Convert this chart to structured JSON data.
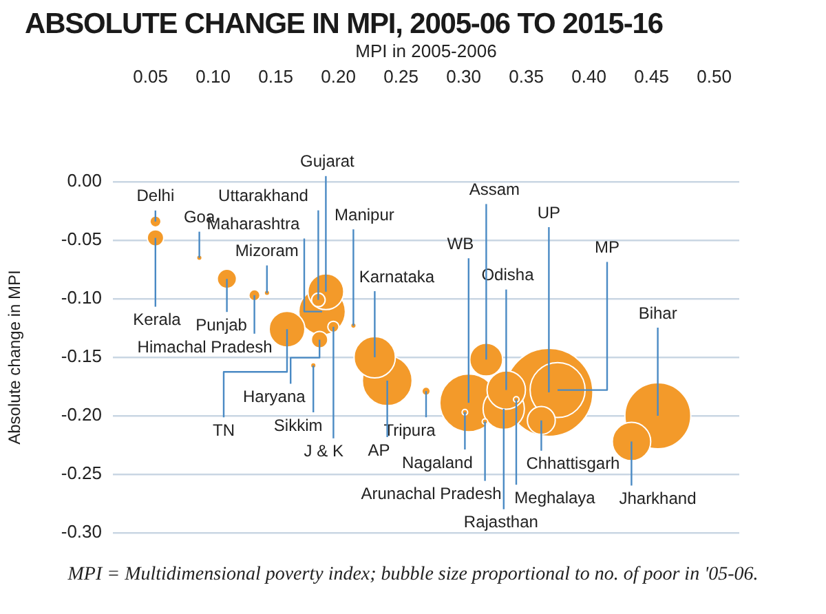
{
  "chart_data": {
    "type": "bubble",
    "title": "ABSOLUTE CHANGE IN MPI, 2005-06 TO 2015-16",
    "xlabel": "MPI in 2005-2006",
    "ylabel": "Absolute change in MPI",
    "x": [
      0.368,
      0.455,
      0.304,
      0.375,
      0.239,
      0.229,
      0.332,
      0.187,
      0.334,
      0.434,
      0.159,
      0.19,
      0.318,
      0.362,
      0.111,
      0.054,
      0.185,
      0.184,
      0.054,
      0.133,
      0.196,
      0.27,
      0.18,
      0.089,
      0.143,
      0.212,
      0.301,
      0.317,
      0.342
    ],
    "values": [
      -0.18,
      -0.2,
      -0.189,
      -0.178,
      -0.17,
      -0.15,
      -0.194,
      -0.111,
      -0.178,
      -0.222,
      -0.126,
      -0.094,
      -0.152,
      -0.204,
      -0.083,
      -0.048,
      -0.135,
      -0.101,
      -0.034,
      -0.097,
      -0.124,
      -0.179,
      -0.157,
      -0.065,
      -0.095,
      -0.123,
      -0.197,
      -0.205,
      -0.186
    ],
    "sizes": [
      1,
      0.56,
      0.43,
      0.39,
      0.32,
      0.22,
      0.22,
      0.28,
      0.19,
      0.19,
      0.165,
      0.165,
      0.14,
      0.1,
      0.048,
      0.035,
      0.035,
      0.024,
      0.016,
      0.016,
      0.016,
      0.009,
      0.004,
      0.004,
      0.004,
      0.004,
      0.004,
      0.004,
      0.004
    ],
    "color": "#f39a2a",
    "xlim": [
      0.02,
      0.52
    ],
    "xticks": [
      0.05,
      {
        "value": 0.1,
        "label": "0.10"
      },
      0.15,
      {
        "value": 0.2,
        "label": "0.20"
      },
      0.25,
      {
        "value": 0.3,
        "label": "0.30"
      },
      0.35,
      {
        "value": 0.4,
        "label": "0.40"
      },
      0.45,
      {
        "value": 0.5,
        "label": "0.50"
      }
    ],
    "ylim": [
      -0.3,
      0
    ],
    "yticks": [
      {
        "value": 0,
        "label": "0.00"
      },
      -0.05,
      {
        "value": -0.1,
        "label": "-0.10"
      },
      -0.15,
      {
        "value": -0.2,
        "label": "-0.20"
      },
      -0.25,
      {
        "value": -0.3,
        "label": "-0.30"
      }
    ],
    "grid": "y",
    "annotations": [
      {
        "text": "UP",
        "x": 0.368,
        "y": -0.18
      },
      {
        "text": "Bihar",
        "x": 0.455,
        "y": -0.2
      },
      {
        "text": "WB",
        "x": 0.304,
        "y": -0.189
      },
      {
        "text": "MP",
        "x": 0.375,
        "y": -0.178
      },
      {
        "text": "AP",
        "x": 0.239,
        "y": -0.17
      },
      {
        "text": "Karnataka",
        "x": 0.229,
        "y": -0.15
      },
      {
        "text": "Rajasthan",
        "x": 0.332,
        "y": -0.194
      },
      {
        "text": "Maharashtra",
        "x": 0.187,
        "y": -0.111
      },
      {
        "text": "Odisha",
        "x": 0.334,
        "y": -0.178
      },
      {
        "text": "Jharkhand",
        "x": 0.434,
        "y": -0.222
      },
      {
        "text": "TN",
        "x": 0.159,
        "y": -0.126
      },
      {
        "text": "Gujarat",
        "x": 0.19,
        "y": -0.094
      },
      {
        "text": "Assam",
        "x": 0.318,
        "y": -0.152
      },
      {
        "text": "Chhattisgarh",
        "x": 0.362,
        "y": -0.204
      },
      {
        "text": "Punjab",
        "x": 0.111,
        "y": -0.083
      },
      {
        "text": "Kerala",
        "x": 0.054,
        "y": -0.048
      },
      {
        "text": "Haryana",
        "x": 0.185,
        "y": -0.135
      },
      {
        "text": "Uttarakhand",
        "x": 0.184,
        "y": -0.101
      },
      {
        "text": "Delhi",
        "x": 0.054,
        "y": -0.034
      },
      {
        "text": "Himachal Pradesh",
        "x": 0.133,
        "y": -0.097
      },
      {
        "text": "J & K",
        "x": 0.196,
        "y": -0.124
      },
      {
        "text": "Tripura",
        "x": 0.27,
        "y": -0.179
      },
      {
        "text": "Sikkim",
        "x": 0.18,
        "y": -0.157
      },
      {
        "text": "Goa",
        "x": 0.089,
        "y": -0.065
      },
      {
        "text": "Mizoram",
        "x": 0.143,
        "y": -0.095
      },
      {
        "text": "Manipur",
        "x": 0.212,
        "y": -0.123
      },
      {
        "text": "Nagaland",
        "x": 0.301,
        "y": -0.197
      },
      {
        "text": "Arunachal Pradesh",
        "x": 0.317,
        "y": -0.205
      },
      {
        "text": "Meghalaya",
        "x": 0.342,
        "y": -0.186
      },
      "MPI = Multidimensional poverty index; bubble size proportional to no. of poor in '05-06."
    ]
  }
}
